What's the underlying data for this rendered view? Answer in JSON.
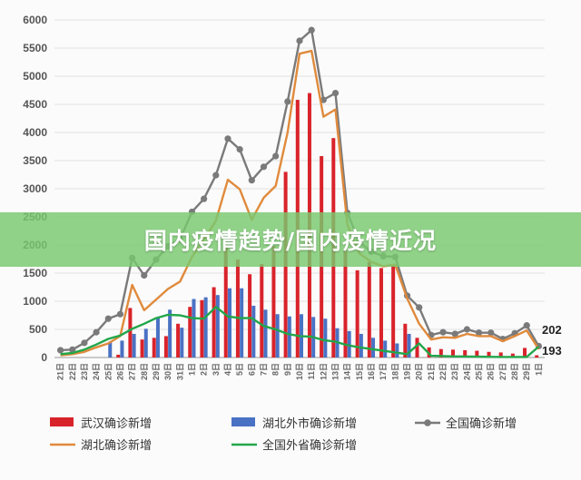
{
  "banner": {
    "title": "国内疫情趋势/国内疫情近况"
  },
  "chart_data": {
    "type": "bar",
    "grid": true,
    "legend_placement": "bottom",
    "ylim": [
      0,
      6000
    ],
    "yticks": [
      0,
      500,
      1000,
      1500,
      2000,
      2500,
      3000,
      3500,
      4000,
      4500,
      5000,
      5500,
      6000
    ],
    "categories": [
      "21日",
      "22日",
      "23日",
      "24日",
      "25日",
      "26日",
      "27日",
      "28日",
      "29日",
      "30日",
      "31日",
      "1日",
      "2日",
      "3日",
      "4日",
      "5日",
      "6日",
      "7日",
      "8日",
      "9日",
      "10日",
      "11日",
      "12日",
      "13日",
      "14日",
      "15日",
      "16日",
      "17日",
      "18日",
      "19日",
      "20日",
      "21日",
      "22日",
      "23日",
      "24日",
      "25日",
      "26日",
      "27日",
      "28日",
      "29日",
      "1日"
    ],
    "series": [
      {
        "name": "武汉确诊新增",
        "type": "bar",
        "color": "#d9232b",
        "values": [
          0,
          0,
          0,
          0,
          0,
          50,
          880,
          320,
          350,
          380,
          600,
          900,
          1020,
          1250,
          1960,
          1740,
          1480,
          1660,
          1980,
          3300,
          4580,
          4700,
          3580,
          3900,
          1900,
          1550,
          1700,
          1590,
          1660,
          600,
          350,
          180,
          150,
          140,
          130,
          120,
          100,
          90,
          70,
          170,
          40
        ]
      },
      {
        "name": "湖北外市确诊新增",
        "type": "bar",
        "color": "#4a72c4",
        "values": [
          0,
          0,
          0,
          0,
          280,
          300,
          420,
          510,
          700,
          850,
          530,
          1040,
          1070,
          1110,
          1230,
          1230,
          920,
          850,
          770,
          730,
          770,
          720,
          690,
          520,
          470,
          420,
          350,
          300,
          250,
          420,
          0,
          0,
          0,
          0,
          0,
          0,
          0,
          0,
          0,
          0,
          0
        ]
      },
      {
        "name": "全国确诊新增",
        "type": "line",
        "color": "#7a7a7a",
        "values": [
          130,
          140,
          260,
          450,
          690,
          770,
          1770,
          1460,
          1740,
          1980,
          2100,
          2590,
          2820,
          3240,
          3890,
          3700,
          3150,
          3390,
          3580,
          4550,
          5630,
          5820,
          4580,
          4700,
          2570,
          2050,
          1880,
          1800,
          1790,
          1100,
          890,
          400,
          450,
          420,
          500,
          440,
          440,
          330,
          430,
          570,
          202
        ]
      },
      {
        "name": "湖北确诊新增",
        "type": "line",
        "color": "#e08a3c",
        "values": [
          40,
          60,
          100,
          180,
          250,
          380,
          1290,
          840,
          1030,
          1220,
          1350,
          1790,
          2100,
          2430,
          3160,
          2990,
          2450,
          2840,
          3050,
          4000,
          5400,
          5450,
          4280,
          4410,
          2360,
          1850,
          1700,
          1620,
          1650,
          1050,
          600,
          320,
          360,
          350,
          420,
          380,
          380,
          290,
          380,
          480,
          150
        ]
      },
      {
        "name": "全国外省确诊新增",
        "type": "line",
        "color": "#22a64a",
        "values": [
          60,
          80,
          140,
          230,
          330,
          390,
          510,
          600,
          700,
          760,
          750,
          700,
          690,
          900,
          730,
          700,
          700,
          560,
          500,
          420,
          380,
          370,
          310,
          280,
          220,
          180,
          150,
          120,
          90,
          60,
          250,
          30,
          25,
          20,
          18,
          15,
          12,
          10,
          10,
          10,
          193
        ]
      }
    ],
    "annotations": [
      "202",
      "193"
    ]
  }
}
